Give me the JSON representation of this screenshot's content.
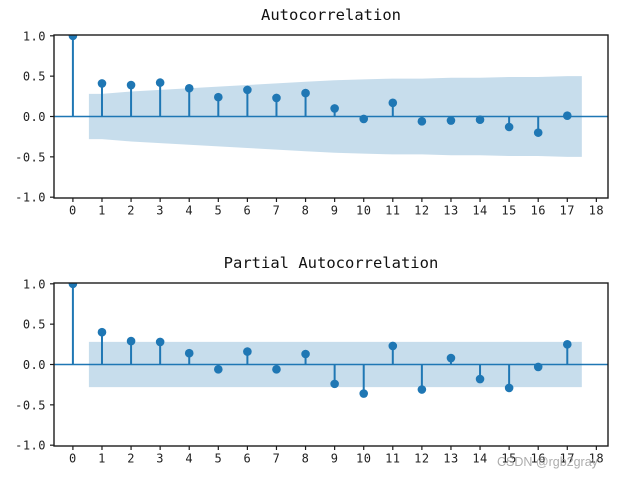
{
  "figure": {
    "watermark": "CSDN @rgb2gray",
    "colors": {
      "stem": "#1f77b4",
      "band": "#1f77b4",
      "band_opacity": 0.25,
      "spine": "#1c1c1c",
      "tick_label": "#1f1f1f",
      "title": "#111111",
      "watermark": "#9a9a9a",
      "background": "#ffffff"
    }
  },
  "chart_data": [
    {
      "type": "stem",
      "title": "Autocorrelation",
      "x": [
        0,
        1,
        2,
        3,
        4,
        5,
        6,
        7,
        8,
        9,
        10,
        11,
        12,
        13,
        14,
        15,
        16,
        17
      ],
      "values": [
        1.0,
        0.41,
        0.39,
        0.42,
        0.35,
        0.24,
        0.33,
        0.23,
        0.29,
        0.1,
        -0.03,
        0.17,
        -0.06,
        -0.05,
        -0.04,
        -0.13,
        -0.2,
        0.01
      ],
      "confidence_band": {
        "x": [
          0.55,
          1,
          2,
          3,
          4,
          5,
          6,
          7,
          8,
          9,
          10,
          11,
          12,
          13,
          14,
          15,
          16,
          17,
          17.5
        ],
        "upper": [
          0.28,
          0.28,
          0.31,
          0.33,
          0.35,
          0.37,
          0.39,
          0.41,
          0.43,
          0.45,
          0.46,
          0.47,
          0.47,
          0.48,
          0.48,
          0.49,
          0.49,
          0.5,
          0.5
        ],
        "lower": [
          -0.28,
          -0.28,
          -0.31,
          -0.33,
          -0.35,
          -0.37,
          -0.39,
          -0.41,
          -0.43,
          -0.45,
          -0.46,
          -0.47,
          -0.47,
          -0.48,
          -0.48,
          -0.49,
          -0.49,
          -0.5,
          -0.5
        ]
      },
      "xticks": [
        0,
        1,
        2,
        3,
        4,
        5,
        6,
        7,
        8,
        9,
        10,
        11,
        12,
        13,
        14,
        15,
        16,
        17,
        18
      ],
      "xtick_labels": [
        "0",
        "1",
        "2",
        "3",
        "4",
        "5",
        "6",
        "7",
        "8",
        "9",
        "10",
        "11",
        "12",
        "13",
        "14",
        "15",
        "16",
        "17",
        "18"
      ],
      "yticks": [
        1.0,
        0.5,
        0.0,
        -0.5,
        -1.0
      ],
      "ytick_labels": [
        "1.0",
        "0.5",
        "0.0",
        "-0.5",
        "-1.0"
      ],
      "xlim": [
        -0.65,
        18.4
      ],
      "ylim": [
        -1.01,
        1.01
      ],
      "grid": false
    },
    {
      "type": "stem",
      "title": "Partial Autocorrelation",
      "x": [
        0,
        1,
        2,
        3,
        4,
        5,
        6,
        7,
        8,
        9,
        10,
        11,
        12,
        13,
        14,
        15,
        16,
        17
      ],
      "values": [
        1.0,
        0.4,
        0.29,
        0.28,
        0.14,
        -0.06,
        0.16,
        -0.06,
        0.13,
        -0.24,
        -0.36,
        0.23,
        -0.31,
        0.08,
        -0.18,
        -0.29,
        -0.03,
        0.25
      ],
      "confidence_band": {
        "x": [
          0.55,
          17.5
        ],
        "upper": [
          0.28,
          0.28
        ],
        "lower": [
          -0.28,
          -0.28
        ]
      },
      "xticks": [
        0,
        1,
        2,
        3,
        4,
        5,
        6,
        7,
        8,
        9,
        10,
        11,
        12,
        13,
        14,
        15,
        16,
        17,
        18
      ],
      "xtick_labels": [
        "0",
        "1",
        "2",
        "3",
        "4",
        "5",
        "6",
        "7",
        "8",
        "9",
        "10",
        "11",
        "12",
        "13",
        "14",
        "15",
        "16",
        "17",
        "18"
      ],
      "yticks": [
        1.0,
        0.5,
        0.0,
        -0.5,
        -1.0
      ],
      "ytick_labels": [
        "1.0",
        "0.5",
        "0.0",
        "-0.5",
        "-1.0"
      ],
      "xlim": [
        -0.65,
        18.4
      ],
      "ylim": [
        -1.01,
        1.01
      ],
      "grid": false
    }
  ]
}
